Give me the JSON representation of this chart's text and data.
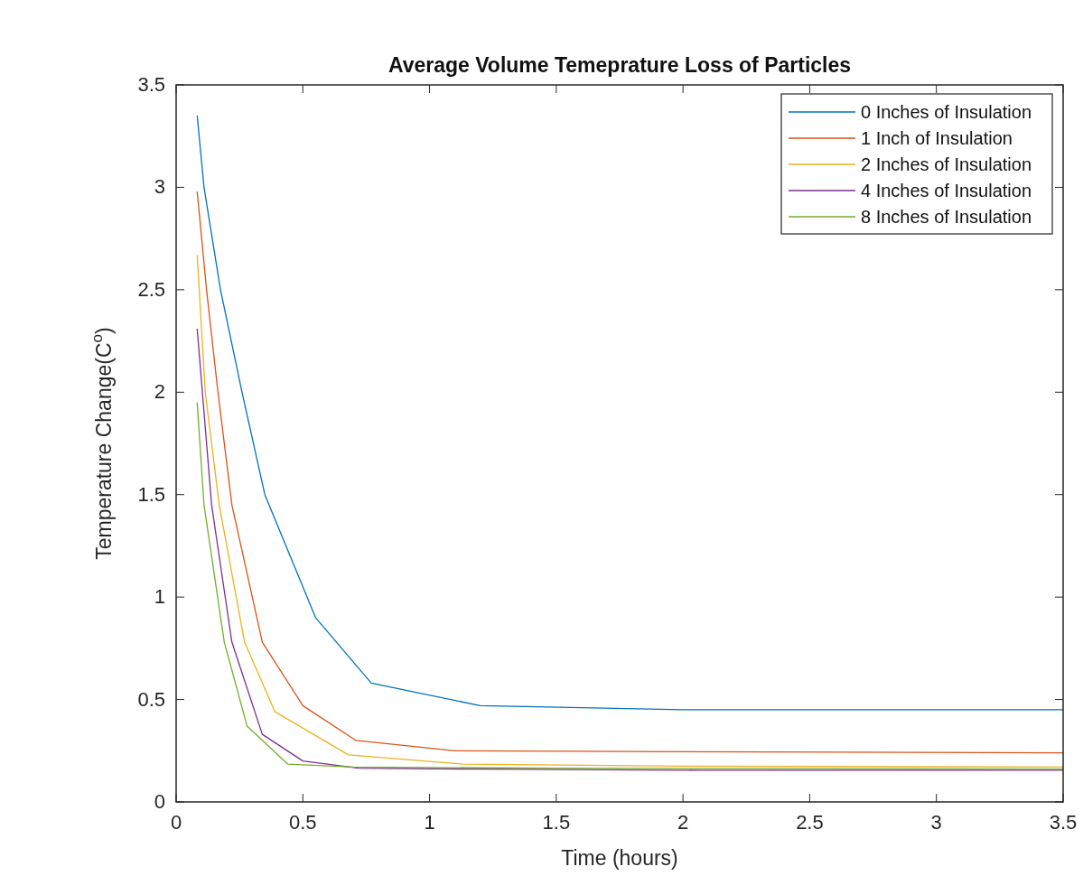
{
  "chart_data": {
    "type": "line",
    "title": "Average Volume Temeprature Loss of Particles",
    "xlabel": "Time (hours)",
    "ylabel": "Temperature Change(C$^{o}$)",
    "xlim": [
      0,
      3.5
    ],
    "xticks": [
      0,
      0.5,
      1,
      1.5,
      2,
      2.5,
      3,
      3.5
    ],
    "ylim": [
      0,
      3.5
    ],
    "yticks": [
      0,
      0.5,
      1,
      1.5,
      2,
      2.5,
      3,
      3.5
    ],
    "grid": false,
    "legend": "top right",
    "marker": "none",
    "line_style": "solid",
    "series": [
      {
        "name": "0 Inches of Insulation",
        "color": "#0072bd",
        "x": [
          0.083,
          0.11,
          0.175,
          0.26,
          0.35,
          0.45,
          0.55,
          0.77,
          1.2,
          2,
          3.5
        ],
        "values": [
          3.35,
          3,
          2.5,
          2,
          1.5,
          1.2,
          0.9,
          0.58,
          0.47,
          0.45,
          0.45
        ]
      },
      {
        "name": "1 Inch of Insulation",
        "color": "#d95319",
        "x": [
          0.083,
          0.12,
          0.165,
          0.22,
          0.34,
          0.5,
          0.71,
          1.1,
          2,
          3.5
        ],
        "values": [
          2.98,
          2.5,
          2,
          1.45,
          0.78,
          0.47,
          0.3,
          0.25,
          0.245,
          0.24
        ]
      },
      {
        "name": "2 Inches of Insulation",
        "color": "#edb120",
        "x": [
          0.083,
          0.115,
          0.17,
          0.27,
          0.39,
          0.68,
          1.13,
          2,
          3.5
        ],
        "values": [
          2.67,
          2,
          1.45,
          0.78,
          0.44,
          0.23,
          0.185,
          0.175,
          0.17
        ]
      },
      {
        "name": "4 Inches of Insulation",
        "color": "#7e2f8e",
        "x": [
          0.083,
          0.14,
          0.22,
          0.34,
          0.5,
          0.72,
          1.2,
          2.07,
          3.5
        ],
        "values": [
          2.31,
          1.45,
          0.78,
          0.33,
          0.2,
          0.165,
          0.16,
          0.155,
          0.155
        ]
      },
      {
        "name": "8 Inches of Insulation",
        "color": "#77ac30",
        "x": [
          0.083,
          0.11,
          0.19,
          0.28,
          0.44,
          0.7,
          1.5,
          3.5
        ],
        "values": [
          1.95,
          1.45,
          0.78,
          0.37,
          0.185,
          0.17,
          0.165,
          0.16
        ]
      }
    ]
  }
}
